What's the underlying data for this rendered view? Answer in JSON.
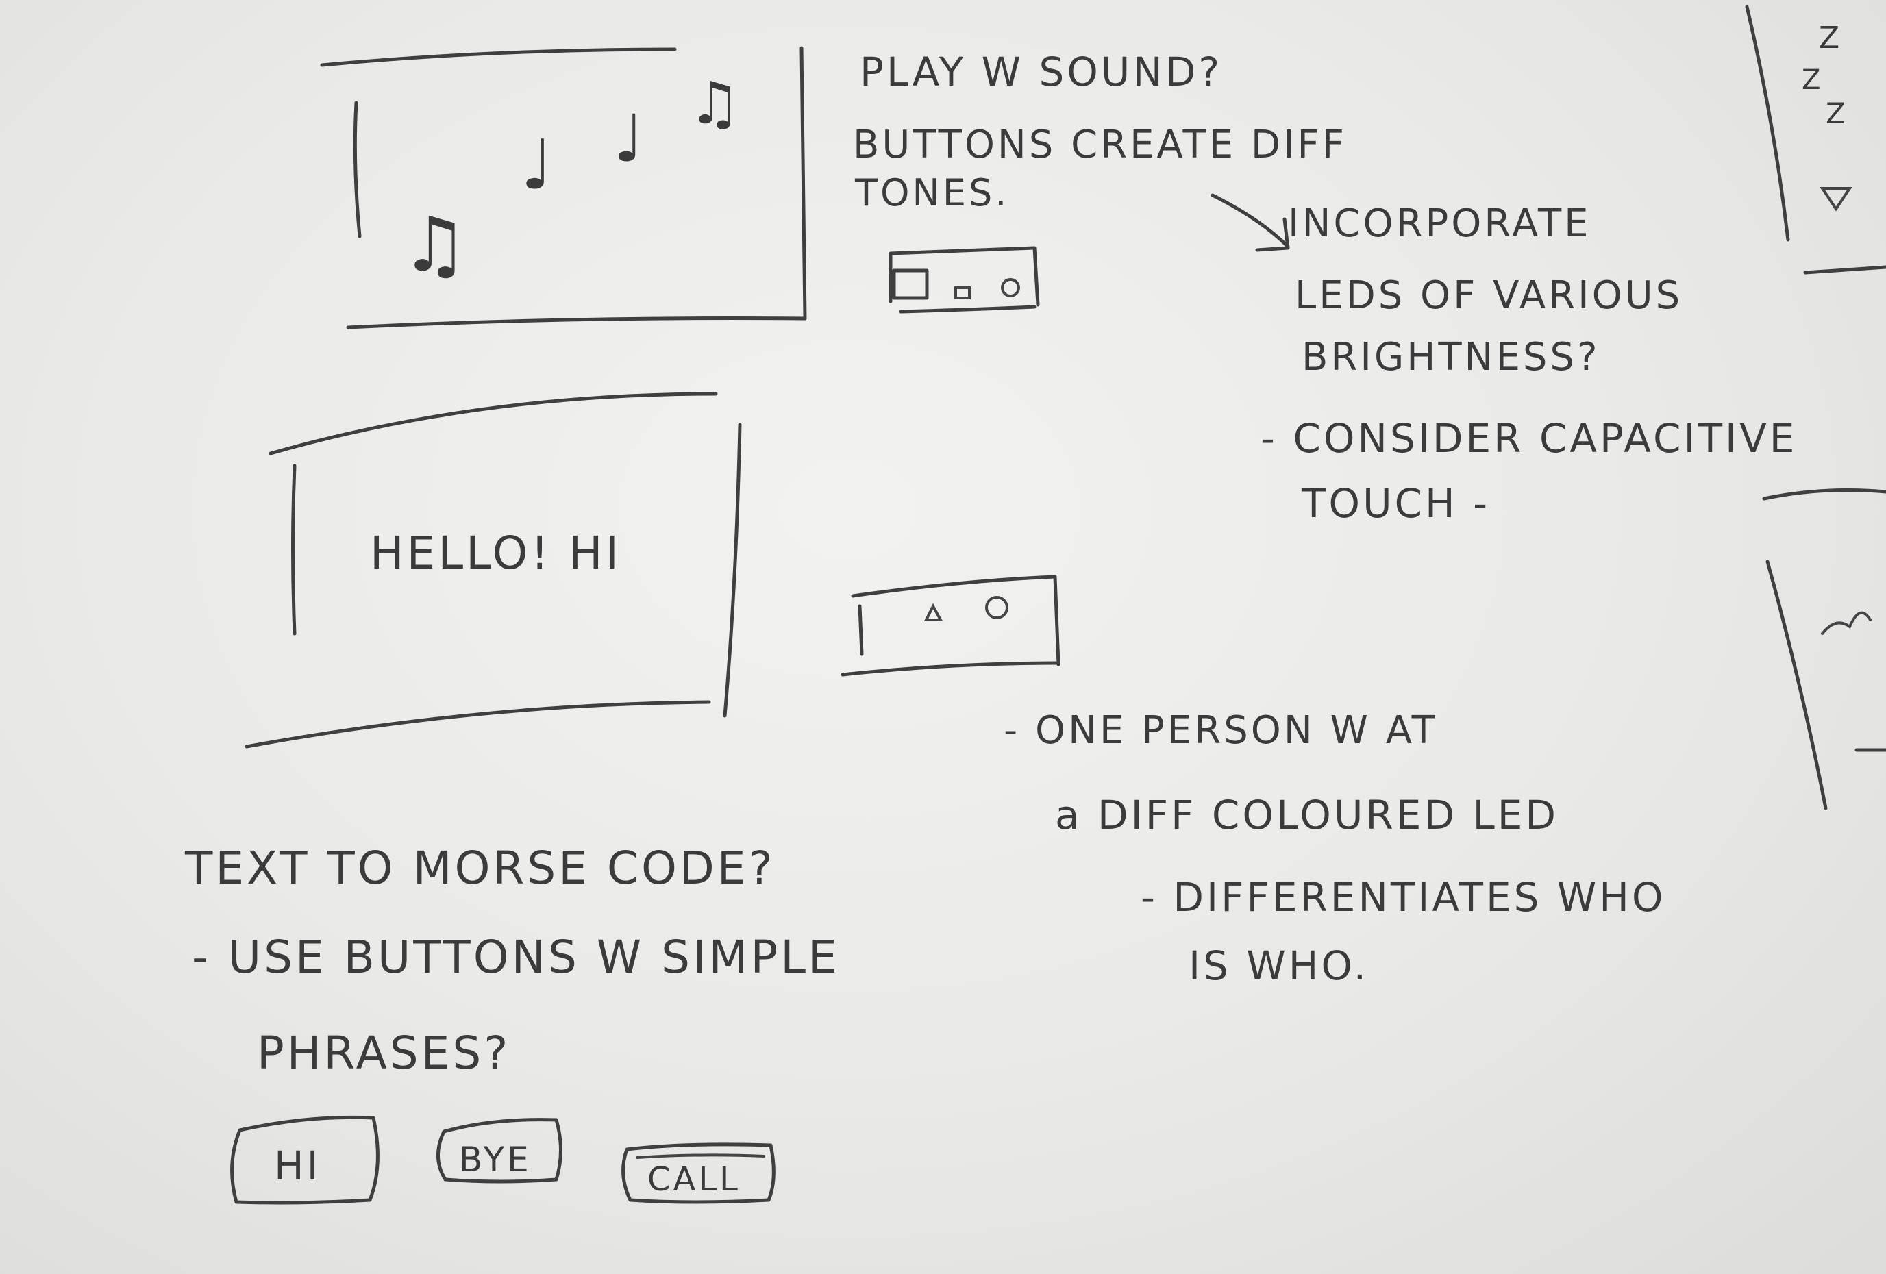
{
  "sketch": {
    "music_note_glyph": "♫",
    "note_glyph": "♩",
    "notes": {
      "line1": "PLAY W SOUND?",
      "line2": "BUTTONS CREATE DIFF",
      "line3": "TONES."
    },
    "led_idea": {
      "line1": "INCORPORATE",
      "line2": "LEDS OF VARIOUS",
      "line3": "BRIGHTNESS?",
      "line4": "- CONSIDER CAPACITIVE",
      "line5": "TOUCH -"
    },
    "screen_text": "HELLO! HI",
    "led_person": {
      "line1": "- ONE PERSON W AT",
      "line2": "a DIFF COLOURED LED",
      "line3": "- DIFFERENTIATES WHO",
      "line4": "IS WHO."
    },
    "morse": {
      "line1": "TEXT TO MORSE CODE?",
      "line2": "- USE BUTTONS W SIMPLE",
      "line3": "PHRASES?"
    },
    "buttons": {
      "hi": "HI",
      "bye": "BYE",
      "call": "CALL"
    },
    "margin_marks": {
      "z1": "Z",
      "z2": "Z",
      "z3": "Z"
    }
  },
  "colors": {
    "paper": "#ebebe9",
    "pencil": "#3f3f3f"
  }
}
